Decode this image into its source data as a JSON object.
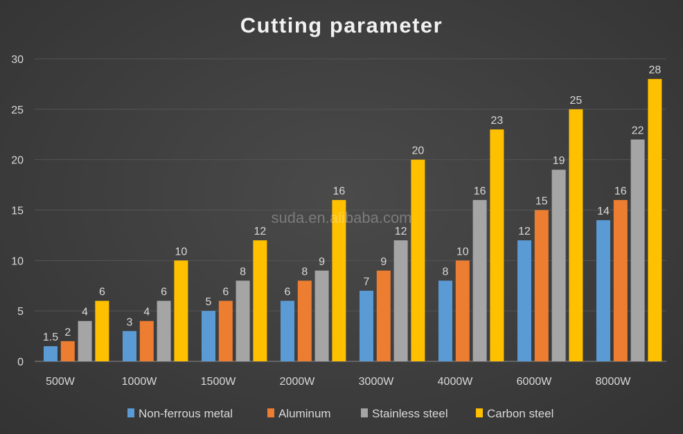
{
  "chart_data": {
    "type": "bar",
    "title": "Cutting parameter",
    "categories": [
      "500W",
      "1000W",
      "1500W",
      "2000W",
      "3000W",
      "4000W",
      "6000W",
      "8000W"
    ],
    "series": [
      {
        "name": "Non-ferrous metal",
        "color": "#5B9BD5",
        "values": [
          1.5,
          3,
          5,
          6,
          7,
          8,
          12,
          14
        ]
      },
      {
        "name": "Aluminum",
        "color": "#ED7D31",
        "values": [
          2,
          4,
          6,
          8,
          9,
          10,
          15,
          16
        ]
      },
      {
        "name": "Stainless steel",
        "color": "#A5A5A5",
        "values": [
          4,
          6,
          8,
          9,
          12,
          16,
          19,
          22
        ]
      },
      {
        "name": "Carbon steel",
        "color": "#FFC000",
        "values": [
          6,
          10,
          12,
          16,
          20,
          23,
          25,
          28
        ]
      }
    ],
    "ylim": [
      0,
      30
    ],
    "yticks": [
      0,
      5,
      10,
      15,
      20,
      25,
      30
    ],
    "grid": true,
    "legend": "bottom",
    "xlabel": "",
    "ylabel": ""
  },
  "watermark": "suda.en.alibaba.com"
}
